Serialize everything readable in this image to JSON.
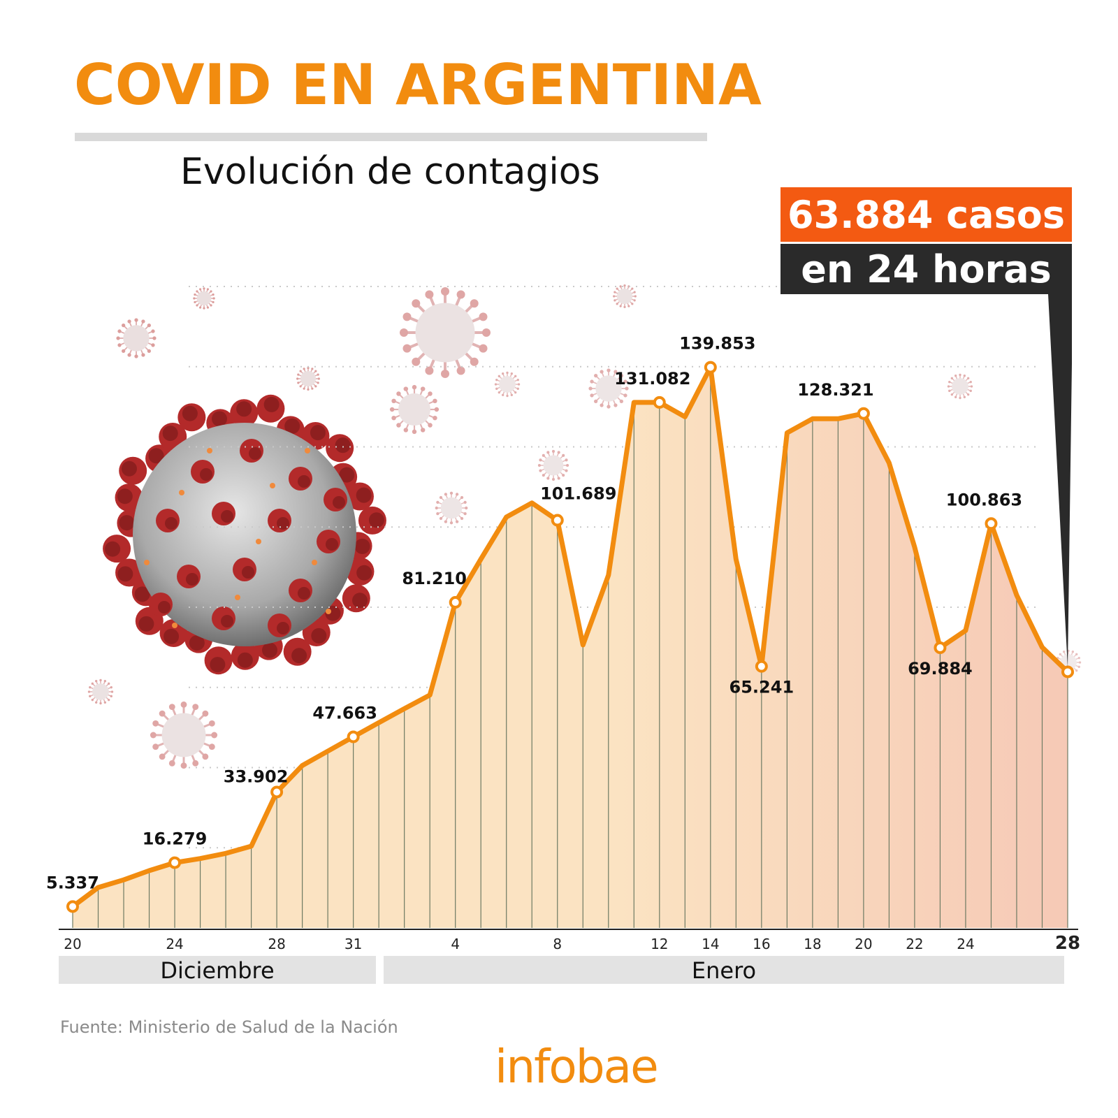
{
  "header": {
    "title": "COVID EN ARGENTINA",
    "subtitle": "Evolución de contagios"
  },
  "callout": {
    "line1": "63.884 casos",
    "line2": "en 24 horas"
  },
  "footer": {
    "source": "Fuente: Ministerio de Salud de la Nación",
    "logo": "infobae"
  },
  "colors": {
    "accent": "#f28c0f",
    "callout_red": "#f35a12",
    "callout_dark": "#2a2a2a",
    "area_fill_start": "#fbe3c2",
    "area_fill_end": "#f6c9b6",
    "virus_red": "#b32a2a"
  },
  "chart_data": {
    "type": "area",
    "title": "COVID EN ARGENTINA",
    "subtitle": "Evolución de contagios",
    "xlabel": "",
    "ylabel": "",
    "ylim": [
      0,
      160000
    ],
    "grid": true,
    "months": [
      {
        "label": "Diciembre",
        "start_index": 0,
        "end_index": 11
      },
      {
        "label": "Enero",
        "start_index": 12,
        "end_index": 39
      }
    ],
    "x": [
      "20",
      "21",
      "22",
      "23",
      "24",
      "25",
      "26",
      "27",
      "28",
      "29",
      "30",
      "31",
      "1",
      "2",
      "3",
      "4",
      "5",
      "6",
      "7",
      "8",
      "9",
      "10",
      "11",
      "12",
      "13",
      "14",
      "15",
      "16",
      "17",
      "18",
      "19",
      "20",
      "21",
      "22",
      "23",
      "24",
      "25",
      "26",
      "27",
      "28"
    ],
    "tick_labels": [
      {
        "index": 0,
        "label": "20"
      },
      {
        "index": 4,
        "label": "24"
      },
      {
        "index": 8,
        "label": "28"
      },
      {
        "index": 11,
        "label": "31"
      },
      {
        "index": 15,
        "label": "4"
      },
      {
        "index": 19,
        "label": "8"
      },
      {
        "index": 23,
        "label": "12"
      },
      {
        "index": 25,
        "label": "14"
      },
      {
        "index": 27,
        "label": "16"
      },
      {
        "index": 29,
        "label": "18"
      },
      {
        "index": 31,
        "label": "20"
      },
      {
        "index": 33,
        "label": "22"
      },
      {
        "index": 35,
        "label": "24"
      },
      {
        "index": 39,
        "label": "28",
        "bold": true
      }
    ],
    "series": [
      {
        "values": [
          5337,
          10100,
          12000,
          14300,
          16279,
          17300,
          18600,
          20400,
          33902,
          40500,
          44100,
          47663,
          51200,
          54700,
          58100,
          81210,
          92000,
          102500,
          106000,
          101689,
          70600,
          88000,
          131082,
          131082,
          127500,
          139853,
          92000,
          65241,
          123500,
          127000,
          127000,
          128321,
          116000,
          95000,
          69884,
          74200,
          100863,
          83000,
          70000,
          63884
        ],
        "labels": [
          {
            "index": 0,
            "text": "5.337"
          },
          {
            "index": 4,
            "text": "16.279"
          },
          {
            "index": 8,
            "text": "33.902"
          },
          {
            "index": 11,
            "text": "47.663"
          },
          {
            "index": 15,
            "text": "81.210"
          },
          {
            "index": 19,
            "text": "101.689"
          },
          {
            "index": 23,
            "text": "131.082"
          },
          {
            "index": 25,
            "text": "139.853"
          },
          {
            "index": 27,
            "text": "65.241"
          },
          {
            "index": 31,
            "text": "128.321"
          },
          {
            "index": 34,
            "text": "69.884"
          },
          {
            "index": 36,
            "text": "100.863"
          }
        ]
      }
    ]
  }
}
